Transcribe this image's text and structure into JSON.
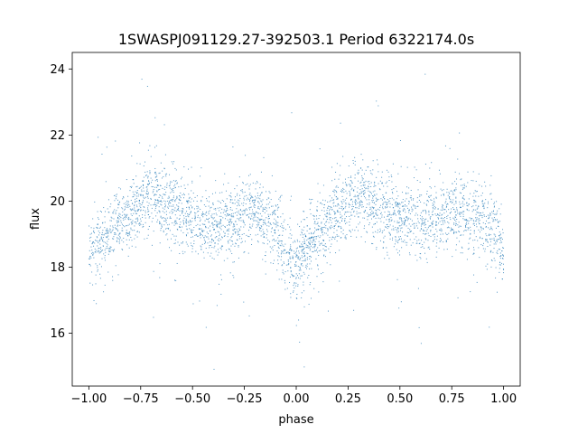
{
  "chart_data": {
    "type": "scatter",
    "title": "1SWASPJ091129.27-392503.1 Period 6322174.0s",
    "xlabel": "phase",
    "ylabel": "flux",
    "xlim": [
      -1.08,
      1.08
    ],
    "ylim": [
      14.4,
      24.5
    ],
    "xticks": [
      -1.0,
      -0.75,
      -0.5,
      -0.25,
      0.0,
      0.25,
      0.5,
      0.75,
      1.0
    ],
    "xtick_labels": [
      "−1.00",
      "−0.75",
      "−0.50",
      "−0.25",
      "0.00",
      "0.25",
      "0.50",
      "0.75",
      "1.00"
    ],
    "yticks": [
      16,
      18,
      20,
      22,
      24
    ],
    "ytick_labels": [
      "16",
      "18",
      "20",
      "22",
      "24"
    ],
    "grid": false,
    "marker_color": "#1f77b4",
    "series": [
      {
        "profile_phase": [
          -1.0,
          -0.9,
          -0.8,
          -0.75,
          -0.7,
          -0.6,
          -0.55,
          -0.5,
          -0.45,
          -0.4,
          -0.3,
          -0.25,
          -0.2,
          -0.1,
          -0.05,
          0.0,
          0.05,
          0.1,
          0.2,
          0.25,
          0.3,
          0.4,
          0.45,
          0.5,
          0.55,
          0.6,
          0.7,
          0.75,
          0.8,
          0.9,
          0.95,
          1.0
        ],
        "profile_flux": [
          18.6,
          19.0,
          19.6,
          19.9,
          20.2,
          19.8,
          19.6,
          19.4,
          19.3,
          19.2,
          19.4,
          19.6,
          19.7,
          19.2,
          18.5,
          18.2,
          18.6,
          19.0,
          19.6,
          19.9,
          20.2,
          19.8,
          19.6,
          19.5,
          19.4,
          19.3,
          19.4,
          19.6,
          19.7,
          19.4,
          19.0,
          18.6
        ]
      }
    ]
  }
}
